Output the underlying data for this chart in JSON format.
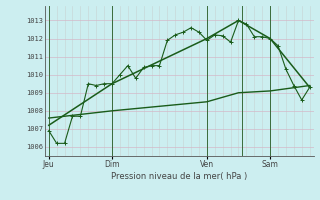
{
  "title": "Pression niveau de la mer( hPa )",
  "bg_color": "#cceef0",
  "grid_color_h": "#d4b8c8",
  "grid_color_v": "#c8d8d8",
  "line_color": "#1a5c1a",
  "text_color": "#444444",
  "ylabel_values": [
    1006,
    1007,
    1008,
    1009,
    1010,
    1011,
    1012,
    1013
  ],
  "day_labels": [
    "Jeu",
    "Dim",
    "Ven",
    "Sam"
  ],
  "day_positions": [
    0,
    8,
    20,
    28
  ],
  "xmin": -0.5,
  "xmax": 33.5,
  "ymin": 1005.5,
  "ymax": 1013.8,
  "series1_x": [
    0,
    1,
    2,
    3,
    4,
    5,
    6,
    7,
    8,
    9,
    10,
    11,
    12,
    13,
    14,
    15,
    16,
    17,
    18,
    19,
    20,
    21,
    22,
    23,
    24,
    25,
    26,
    27,
    28,
    29,
    30,
    31,
    32,
    33
  ],
  "series1_y": [
    1006.9,
    1006.2,
    1006.2,
    1007.7,
    1007.7,
    1009.5,
    1009.4,
    1009.5,
    1009.5,
    1010.0,
    1010.5,
    1009.8,
    1010.4,
    1010.5,
    1010.5,
    1011.9,
    1012.2,
    1012.35,
    1012.6,
    1012.35,
    1011.9,
    1012.2,
    1012.15,
    1011.8,
    1013.0,
    1012.8,
    1012.1,
    1012.1,
    1012.0,
    1011.6,
    1010.3,
    1009.4,
    1008.6,
    1009.3
  ],
  "series2_x": [
    0,
    8,
    20,
    24,
    28,
    33
  ],
  "series2_y": [
    1007.2,
    1009.5,
    1012.0,
    1013.0,
    1012.0,
    1009.3
  ],
  "series3_x": [
    0,
    8,
    20,
    24,
    28,
    33
  ],
  "series3_y": [
    1007.6,
    1008.0,
    1008.5,
    1009.0,
    1009.1,
    1009.4
  ],
  "vline_x": 24.5,
  "n_minor_x": 33,
  "minor_x_step": 1
}
